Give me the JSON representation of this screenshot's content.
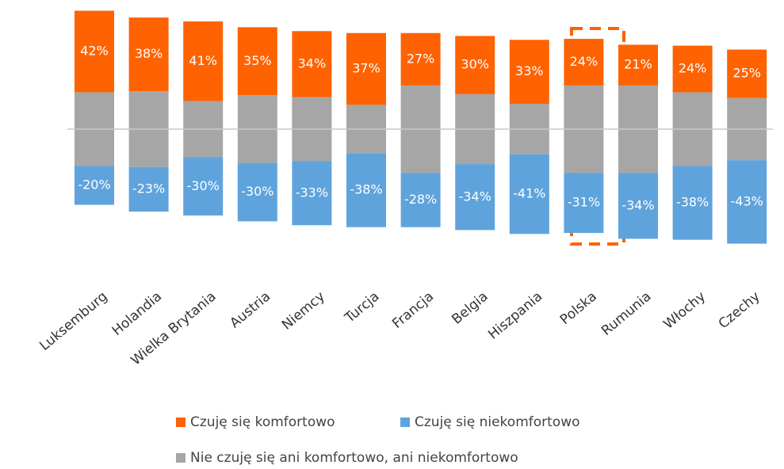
{
  "chart_data": {
    "type": "diverging-stacked-bar",
    "categories": [
      "Luksemburg",
      "Holandia",
      "Wielka Brytania",
      "Austria",
      "Niemcy",
      "Turcja",
      "Francja",
      "Belgia",
      "Hiszpania",
      "Polska",
      "Rumunia",
      "Włochy",
      "Czechy"
    ],
    "series": [
      {
        "name": "Czuję się komfortowo",
        "color": "#ff6200",
        "values": [
          42,
          38,
          41,
          35,
          34,
          37,
          27,
          30,
          33,
          24,
          21,
          24,
          25
        ],
        "value_labels": [
          "42%",
          "38%",
          "41%",
          "35%",
          "34%",
          "37%",
          "27%",
          "30%",
          "33%",
          "24%",
          "21%",
          "24%",
          "25%"
        ]
      },
      {
        "name": "Czuję się niekomfortowo",
        "color": "#5fa3dc",
        "values": [
          -20,
          -23,
          -30,
          -30,
          -33,
          -38,
          -28,
          -34,
          -41,
          -31,
          -34,
          -38,
          -43
        ],
        "value_labels": [
          "-20%",
          "-23%",
          "-30%",
          "-30%",
          "-33%",
          "-38%",
          "-28%",
          "-34%",
          "-41%",
          "-31%",
          "-34%",
          "-38%",
          "-43%"
        ]
      },
      {
        "name": "Nie czuję się ani komfortowo, ani niekomfortowo",
        "color": "#a6a6a6",
        "values": [
          38,
          39,
          29,
          35,
          33,
          25,
          45,
          36,
          26,
          45,
          45,
          38,
          32
        ]
      }
    ]
  }
}
